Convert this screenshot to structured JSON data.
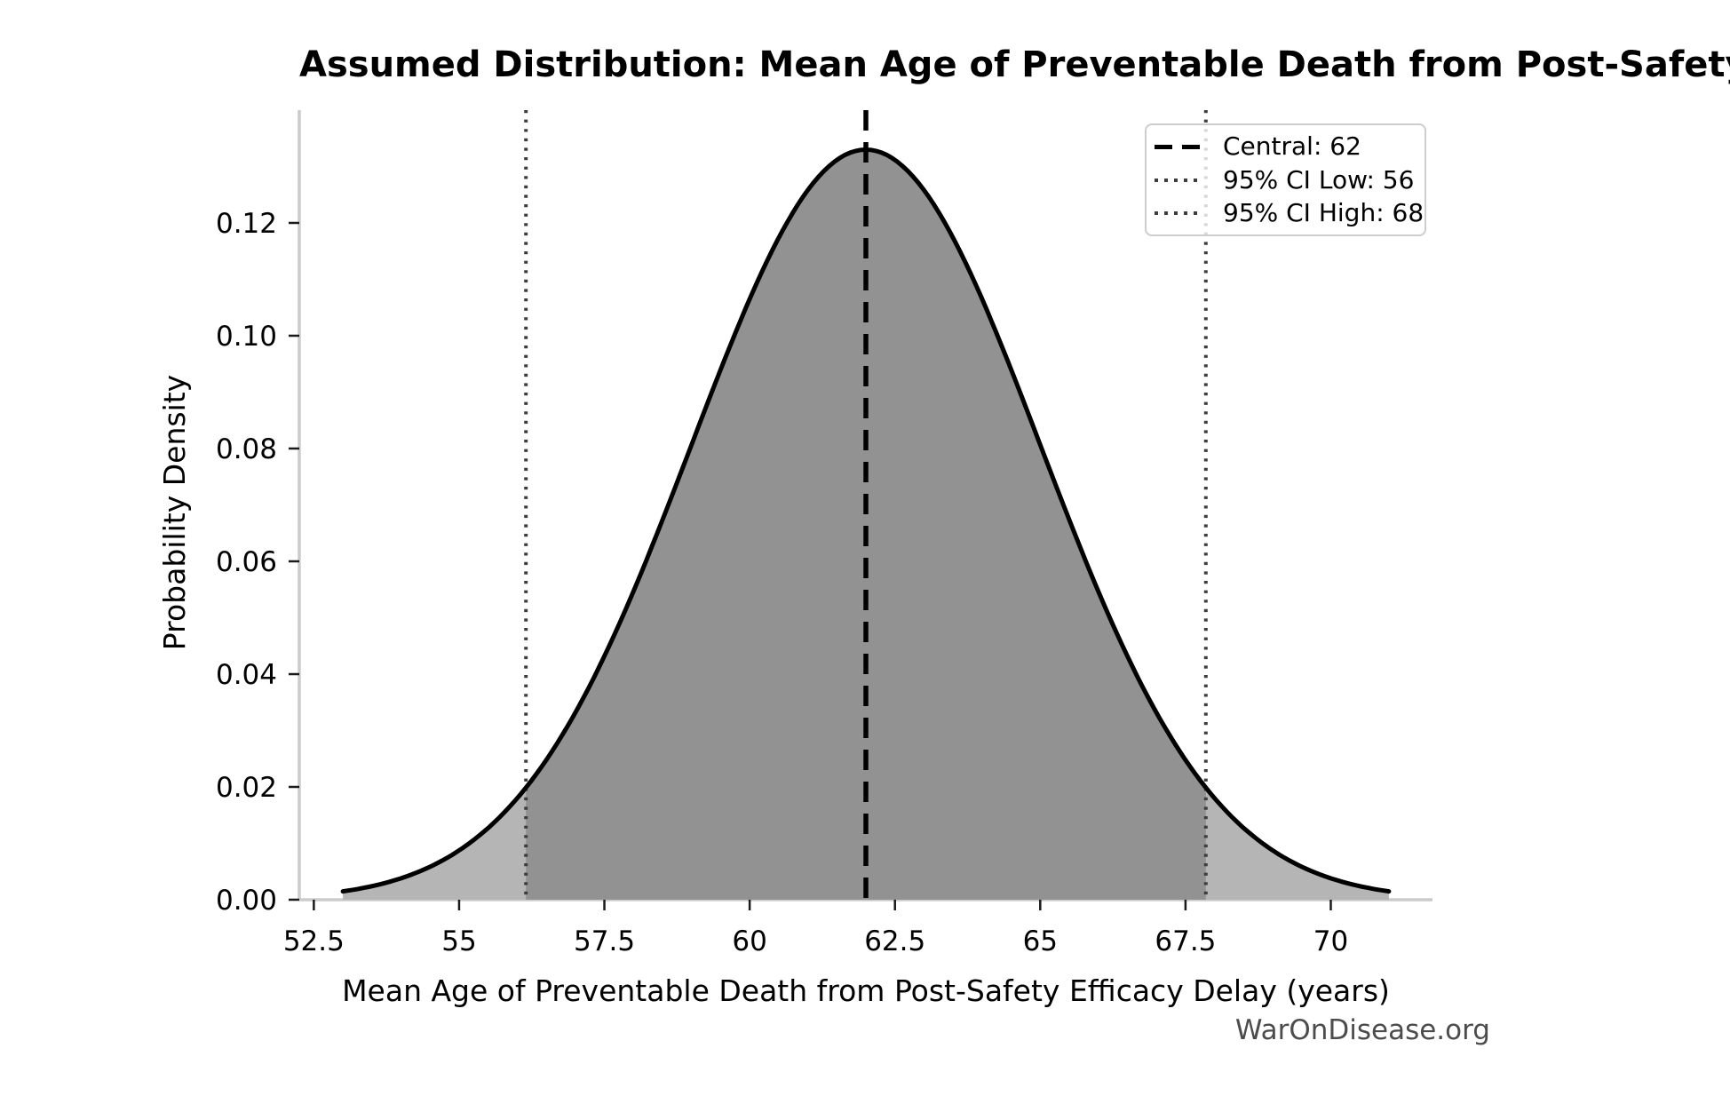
{
  "page": {
    "background": "#ffffff",
    "watermark": "WarOnDisease.org"
  },
  "chart_data": {
    "type": "area",
    "title": "Assumed Distribution: Mean Age of Preventable Death from Post-Safety Efficacy Delay",
    "xlabel": "Mean Age of Preventable Death from Post-Safety Efficacy Delay (years)",
    "ylabel": "Probability Density",
    "distribution": {
      "family": "normal",
      "mean": 62,
      "sigma": 3,
      "peak_density": 0.133,
      "curve_x_start": 53,
      "curve_x_end": 71
    },
    "key_points": [
      {
        "x": 53,
        "density": 0.0015
      },
      {
        "x": 56,
        "density": 0.018
      },
      {
        "x": 59,
        "density": 0.0806
      },
      {
        "x": 62,
        "density": 0.133
      },
      {
        "x": 65,
        "density": 0.0806
      },
      {
        "x": 68,
        "density": 0.018
      },
      {
        "x": 71,
        "density": 0.0015
      }
    ],
    "xlim": [
      52.25,
      71.75
    ],
    "ylim": [
      0,
      0.14
    ],
    "xticks": [
      52.5,
      55,
      57.5,
      60,
      62.5,
      65,
      67.5,
      70
    ],
    "xtick_labels": [
      "52.5",
      "55",
      "57.5",
      "60",
      "62.5",
      "65",
      "67.5",
      "70"
    ],
    "yticks": [
      0,
      0.02,
      0.04,
      0.06,
      0.08,
      0.1,
      0.12
    ],
    "ytick_labels": [
      "0.00",
      "0.02",
      "0.04",
      "0.06",
      "0.08",
      "0.10",
      "0.12"
    ],
    "grid": false,
    "legend_position": "upper right",
    "vlines": [
      {
        "name": "central",
        "value": 62,
        "drawn_at_x": 62,
        "style": "dashed",
        "color": "#000000",
        "label": "Central: 62"
      },
      {
        "name": "ci_low",
        "value": 56,
        "drawn_at_x": 56.15,
        "style": "dotted",
        "color": "#3d3d3d",
        "label": "95% CI Low: 56"
      },
      {
        "name": "ci_high",
        "value": 68,
        "drawn_at_x": 67.85,
        "style": "dotted",
        "color": "#3d3d3d",
        "label": "95% CI High: 68"
      }
    ],
    "shaded_ci_region": {
      "from": 56.15,
      "to": 67.85
    },
    "colors": {
      "curve": "#000000",
      "fill_tails": "#b5b5b5",
      "fill_ci": "#929292",
      "spine": "#cbcbcb",
      "ticks": "#1a1a1a",
      "tick_labels": "#000000",
      "dashed_line": "#000000",
      "dotted_line": "#3d3d3d",
      "legend_border": "#cdcdcd",
      "watermark": "#4c4c4c"
    }
  },
  "legend": {
    "items": [
      {
        "label": "Central: 62",
        "line_style": "dashed",
        "color": "#000000"
      },
      {
        "label": "95% CI Low: 56",
        "line_style": "dotted",
        "color": "#3d3d3d"
      },
      {
        "label": "95% CI High: 68",
        "line_style": "dotted",
        "color": "#3d3d3d"
      }
    ]
  }
}
